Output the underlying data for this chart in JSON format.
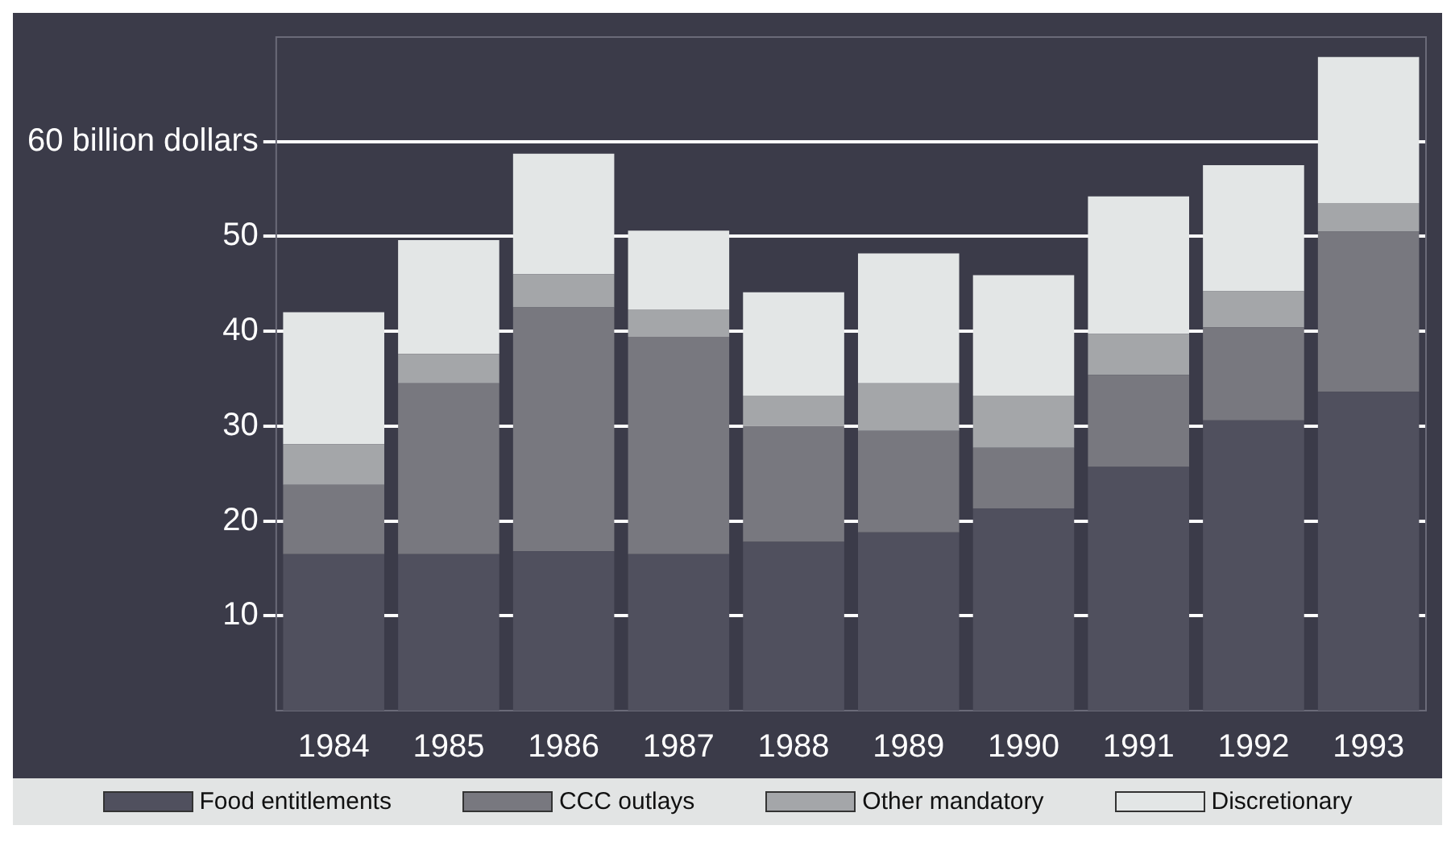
{
  "chart_data": {
    "type": "bar",
    "stacked": true,
    "categories": [
      "1984",
      "1985",
      "1986",
      "1987",
      "1988",
      "1989",
      "1990",
      "1991",
      "1992",
      "1993"
    ],
    "series": [
      {
        "name": "Food entitlements",
        "color": "#50505e",
        "values": [
          16.5,
          16.5,
          16.8,
          16.5,
          17.8,
          18.8,
          21.3,
          25.7,
          30.6,
          33.6
        ]
      },
      {
        "name": "CCC outlays",
        "color": "#78787f",
        "values": [
          7.3,
          18.0,
          25.7,
          22.9,
          12.2,
          10.7,
          6.4,
          9.7,
          9.8,
          16.9
        ]
      },
      {
        "name": "Other mandatory",
        "color": "#a4a6a9",
        "values": [
          4.3,
          3.1,
          3.5,
          2.9,
          3.2,
          5.0,
          5.5,
          4.3,
          3.8,
          3.0
        ]
      },
      {
        "name": "Discretionary",
        "color": "#e3e6e6",
        "values": [
          13.9,
          12.0,
          12.7,
          8.3,
          10.9,
          13.7,
          12.7,
          14.5,
          13.3,
          15.4
        ]
      }
    ],
    "ylim": [
      0,
      71
    ],
    "yticks": [
      10,
      20,
      30,
      40,
      50,
      {
        "value": 60,
        "label": "60 billion dollars"
      }
    ],
    "grid": "y",
    "legend": "bottom"
  }
}
